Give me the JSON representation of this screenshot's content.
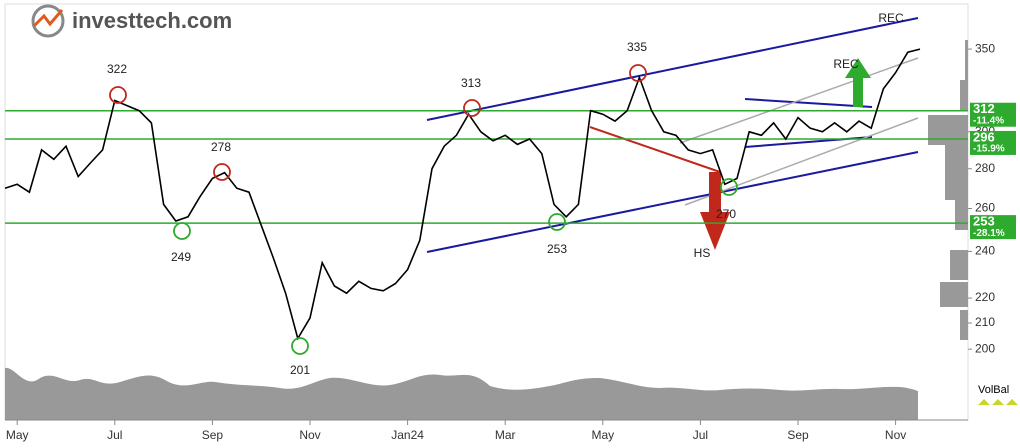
{
  "chart_data": {
    "type": "line",
    "brand": "investtech.com",
    "indicator_label": "VolBal",
    "scale": "log",
    "color": "#000000",
    "categories": [
      null,
      "May",
      null,
      null,
      null,
      null,
      null,
      null,
      null,
      "Jul",
      null,
      null,
      null,
      null,
      null,
      null,
      null,
      "Sep",
      null,
      null,
      null,
      null,
      null,
      null,
      null,
      "Nov",
      null,
      null,
      null,
      null,
      null,
      null,
      null,
      "Jan24",
      null,
      null,
      null,
      null,
      null,
      null,
      null,
      "Mar",
      null,
      null,
      null,
      null,
      null,
      null,
      null,
      "May",
      null,
      null,
      null,
      null,
      null,
      null,
      null,
      "Jul",
      null,
      null,
      null,
      null,
      null,
      null,
      null,
      "Sep",
      null,
      null,
      null,
      null,
      null,
      null,
      null,
      "Nov",
      null,
      null
    ],
    "values": [
      270,
      272,
      268,
      290,
      285,
      292,
      276,
      283,
      290,
      318,
      315,
      312,
      305,
      262,
      254,
      256,
      266,
      275,
      278,
      270,
      268,
      252,
      237,
      222,
      204,
      212,
      235,
      225,
      222,
      227,
      224,
      223,
      226,
      232,
      245,
      280,
      292,
      298,
      310,
      300,
      295,
      298,
      293,
      296,
      288,
      262,
      256,
      262,
      312,
      310,
      306,
      312,
      332,
      312,
      300,
      298,
      290,
      288,
      290,
      272,
      275,
      300,
      298,
      305,
      296,
      308,
      302,
      300,
      305,
      300,
      306,
      302,
      325,
      335,
      348,
      350
    ],
    "ylim": [
      196,
      380
    ],
    "yticks": [
      200,
      210,
      220,
      240,
      260,
      280,
      300,
      350
    ],
    "levels": [
      {
        "value": 312,
        "change": "-11.4%"
      },
      {
        "value": 296,
        "change": "-15.9%"
      },
      {
        "value": 253,
        "change": "-28.1%"
      }
    ],
    "level_color": "#2eaa2e",
    "annotations": [
      "322",
      "278",
      "249",
      "201",
      "313",
      "253",
      "335",
      "270",
      "HS",
      "REC",
      "REC"
    ]
  }
}
